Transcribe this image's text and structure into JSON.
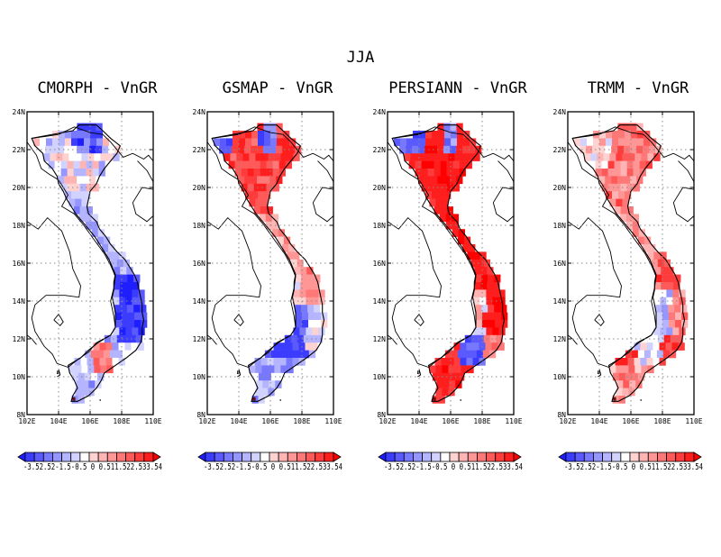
{
  "title": "JJA",
  "panels": [
    {
      "title": "CMORPH - VnGR",
      "pattern": "cmorph"
    },
    {
      "title": "GSMAP - VnGR",
      "pattern": "gsmap"
    },
    {
      "title": "PERSIANN - VnGR",
      "pattern": "persiann"
    },
    {
      "title": "TRMM - VnGR",
      "pattern": "trmm"
    }
  ],
  "axes": {
    "x_ticks": [
      "102E",
      "104E",
      "106E",
      "108E",
      "110E"
    ],
    "y_ticks": [
      "24N",
      "22N",
      "20N",
      "18N",
      "16N",
      "14N",
      "12N",
      "10N",
      "8N"
    ],
    "lon_range": [
      102,
      110
    ],
    "lat_range": [
      8,
      24
    ],
    "grid": "dotted"
  },
  "colorbar": {
    "levels": [
      "-3.5",
      "-3",
      "-2.5",
      "-2",
      "-1.5",
      "-1",
      "-0.5",
      "0",
      "0.5",
      "1",
      "1.5",
      "2",
      "2.5",
      "3",
      "3.5"
    ],
    "label_text": "-3.52.52-1.5-0.5 0 0.511.522.533.54",
    "colors": [
      "#1e1eff",
      "#3c3cff",
      "#5a5aff",
      "#7878ff",
      "#9696ff",
      "#b4b4ff",
      "#d2d2ff",
      "#ffffff",
      "#ffd2d2",
      "#ffb4b4",
      "#ff9696",
      "#ff7878",
      "#ff5a5a",
      "#ff3c3c",
      "#ff1e1e",
      "#ff0000"
    ],
    "extend": "both"
  }
}
